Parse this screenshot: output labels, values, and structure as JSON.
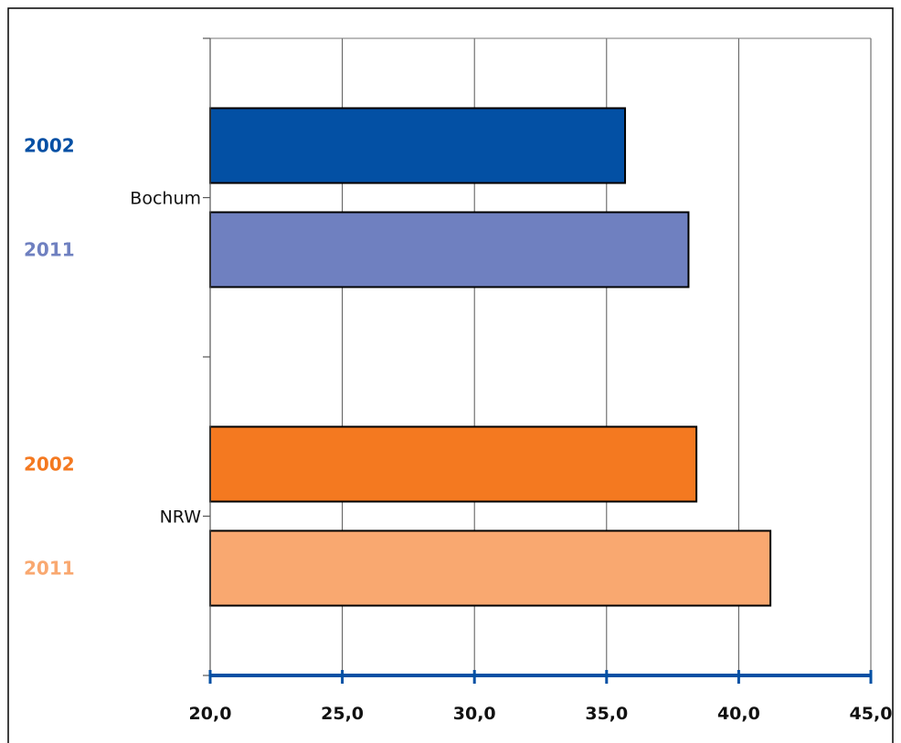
{
  "chart_data": {
    "type": "bar",
    "orientation": "horizontal",
    "title": "",
    "xlabel": "",
    "ylabel": "",
    "xlim": [
      20,
      45
    ],
    "x_ticks": [
      20,
      25,
      30,
      35,
      40,
      45
    ],
    "x_tick_labels": [
      "20,0",
      "25,0",
      "30,0",
      "35,0",
      "40,0",
      "45,0"
    ],
    "grid": "vertical",
    "legend": "none",
    "categories": [
      "Bochum",
      "NRW"
    ],
    "series": [
      {
        "category": "Bochum",
        "year": "2002",
        "value": 35.7,
        "color": "#0350a4"
      },
      {
        "category": "Bochum",
        "year": "2011",
        "value": 38.1,
        "color": "#6f80c0"
      },
      {
        "category": "NRW",
        "year": "2002",
        "value": 38.4,
        "color": "#f47920"
      },
      {
        "category": "NRW",
        "year": "2011",
        "value": 41.2,
        "color": "#f9a870"
      }
    ],
    "axis_color": "#0350a4"
  }
}
